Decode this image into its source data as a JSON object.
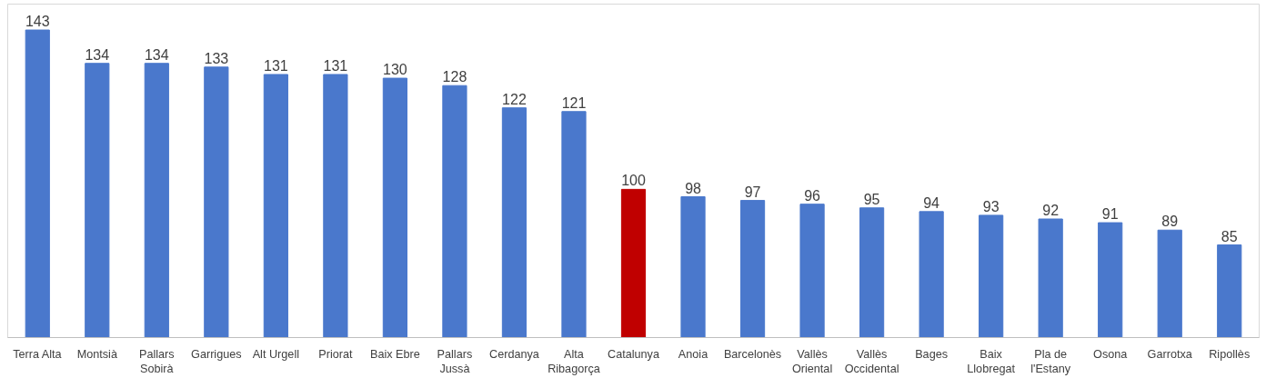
{
  "chart_data": {
    "type": "bar",
    "categories": [
      "Terra Alta",
      "Montsià",
      "Pallars Sobirà",
      "Garrigues",
      "Alt Urgell",
      "Priorat",
      "Baix Ebre",
      "Pallars Jussà",
      "Cerdanya",
      "Alta Ribagorça",
      "Catalunya",
      "Anoia",
      "Barcelonès",
      "Vallès Oriental",
      "Vallès Occidental",
      "Bages",
      "Baix Llobregat",
      "Pla de l'Estany",
      "Osona",
      "Garrotxa",
      "Ripollès"
    ],
    "values": [
      143,
      134,
      134,
      133,
      131,
      131,
      130,
      128,
      122,
      121,
      100,
      98,
      97,
      96,
      95,
      94,
      93,
      92,
      91,
      89,
      85
    ],
    "colors": [
      "#4a78cc",
      "#4a78cc",
      "#4a78cc",
      "#4a78cc",
      "#4a78cc",
      "#4a78cc",
      "#4a78cc",
      "#4a78cc",
      "#4a78cc",
      "#4a78cc",
      "#c00000",
      "#4a78cc",
      "#4a78cc",
      "#4a78cc",
      "#4a78cc",
      "#4a78cc",
      "#4a78cc",
      "#4a78cc",
      "#4a78cc",
      "#4a78cc",
      "#4a78cc"
    ],
    "ylim": [
      60,
      150
    ],
    "data_labels": true,
    "tick_labels": "x",
    "grid": false
  }
}
